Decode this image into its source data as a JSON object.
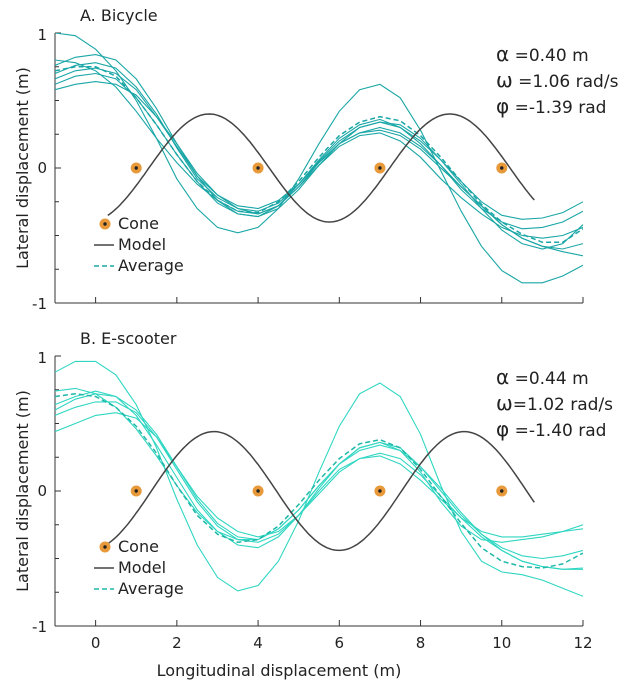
{
  "chart_data": [
    {
      "type": "line",
      "title": "A. Bicycle",
      "xlabel": "",
      "ylabel": "Lateral displacement (m)",
      "xlim": [
        -1,
        12
      ],
      "ylim": [
        -1,
        1
      ],
      "x_ticks": [],
      "y_ticks": [
        {
          "value": 1,
          "label": "1"
        },
        {
          "value": 0,
          "label": "0"
        },
        {
          "value": -1,
          "label": "-1"
        }
      ],
      "params": [
        {
          "symbol": "α",
          "text": " =0.40 m"
        },
        {
          "symbol": "ω",
          "text": " =1.06 rad/s"
        },
        {
          "symbol": "φ",
          "text": " =-1.39 rad"
        }
      ],
      "legend": {
        "placement": "bottom-left",
        "entries": [
          {
            "label": "Cone",
            "kind": "cone"
          },
          {
            "label": "Model",
            "kind": "model"
          },
          {
            "label": "Average",
            "kind": "average"
          }
        ]
      },
      "colors": {
        "trial": "#1aa6a6",
        "average": "#1aa6a6",
        "model": "#444444",
        "cone": "#e89a3a"
      },
      "cones": {
        "x": [
          1,
          4,
          7,
          10
        ],
        "y": [
          0,
          0,
          0,
          0
        ]
      },
      "model": {
        "alpha": 0.4,
        "omega": 1.06,
        "phi": -1.39,
        "x_range": [
          0.3,
          10.8
        ]
      },
      "average": {
        "x": [
          -1,
          -0.5,
          0,
          0.5,
          1,
          1.5,
          2,
          2.5,
          3,
          3.5,
          4,
          4.5,
          5,
          5.5,
          6,
          6.5,
          7,
          7.5,
          8,
          8.5,
          9,
          9.5,
          10,
          10.5,
          11,
          11.5,
          12
        ],
        "y": [
          0.72,
          0.75,
          0.75,
          0.68,
          0.52,
          0.32,
          0.1,
          -0.1,
          -0.24,
          -0.32,
          -0.33,
          -0.25,
          -0.1,
          0.08,
          0.24,
          0.34,
          0.38,
          0.35,
          0.24,
          0.08,
          -0.1,
          -0.27,
          -0.4,
          -0.49,
          -0.55,
          -0.55,
          -0.45
        ]
      },
      "trials": [
        {
          "x": [
            -1,
            -0.5,
            0,
            0.5,
            1,
            1.5,
            2,
            2.5,
            3,
            3.5,
            4,
            4.5,
            5,
            5.5,
            6,
            6.5,
            7,
            7.5,
            8,
            8.5,
            9,
            9.5,
            10,
            10.5,
            11,
            11.5,
            12
          ],
          "y": [
            1.0,
            0.98,
            0.88,
            0.72,
            0.5,
            0.22,
            -0.08,
            -0.3,
            -0.44,
            -0.48,
            -0.44,
            -0.3,
            -0.08,
            0.18,
            0.42,
            0.58,
            0.62,
            0.52,
            0.28,
            -0.02,
            -0.32,
            -0.58,
            -0.76,
            -0.85,
            -0.85,
            -0.8,
            -0.72
          ]
        },
        {
          "x": [
            -1,
            -0.5,
            0,
            0.5,
            1,
            1.5,
            2,
            2.5,
            3,
            3.5,
            4,
            4.5,
            5,
            5.5,
            6,
            6.5,
            7,
            7.5,
            8,
            8.5,
            9,
            9.5,
            10,
            10.5,
            11,
            11.5,
            12
          ],
          "y": [
            0.7,
            0.76,
            0.78,
            0.74,
            0.6,
            0.4,
            0.15,
            -0.08,
            -0.22,
            -0.3,
            -0.32,
            -0.26,
            -0.12,
            0.05,
            0.2,
            0.3,
            0.34,
            0.3,
            0.2,
            0.06,
            -0.1,
            -0.25,
            -0.35,
            -0.38,
            -0.37,
            -0.33,
            -0.25
          ]
        },
        {
          "x": [
            -1,
            -0.5,
            0,
            0.5,
            1,
            1.5,
            2,
            2.5,
            3,
            3.5,
            4,
            4.5,
            5,
            5.5,
            6,
            6.5,
            7,
            7.5,
            8,
            8.5,
            9,
            9.5,
            10,
            10.5,
            11,
            11.5,
            12
          ],
          "y": [
            0.62,
            0.68,
            0.7,
            0.66,
            0.52,
            0.32,
            0.1,
            -0.1,
            -0.26,
            -0.34,
            -0.36,
            -0.28,
            -0.12,
            0.06,
            0.22,
            0.32,
            0.36,
            0.3,
            0.18,
            0.02,
            -0.16,
            -0.3,
            -0.4,
            -0.45,
            -0.44,
            -0.4,
            -0.32
          ]
        },
        {
          "x": [
            -1,
            -0.5,
            0,
            0.5,
            1,
            1.5,
            2,
            2.5,
            3,
            3.5,
            4,
            4.5,
            5,
            5.5,
            6,
            6.5,
            7,
            7.5,
            8,
            8.5,
            9,
            9.5,
            10,
            10.5,
            11,
            11.5,
            12
          ],
          "y": [
            0.8,
            0.78,
            0.72,
            0.6,
            0.42,
            0.22,
            0.04,
            -0.12,
            -0.24,
            -0.32,
            -0.34,
            -0.28,
            -0.14,
            0.04,
            0.18,
            0.26,
            0.28,
            0.24,
            0.14,
            0.0,
            -0.14,
            -0.28,
            -0.42,
            -0.52,
            -0.58,
            -0.6,
            -0.56
          ]
        },
        {
          "x": [
            -1,
            -0.5,
            0,
            0.5,
            1,
            1.5,
            2,
            2.5,
            3,
            3.5,
            4,
            4.5,
            5,
            5.5,
            6,
            6.5,
            7,
            7.5,
            8,
            8.5,
            9,
            9.5,
            10,
            10.5,
            11,
            11.5,
            12
          ],
          "y": [
            0.66,
            0.72,
            0.74,
            0.7,
            0.58,
            0.38,
            0.16,
            -0.06,
            -0.2,
            -0.28,
            -0.3,
            -0.24,
            -0.12,
            0.04,
            0.18,
            0.26,
            0.3,
            0.26,
            0.16,
            0.02,
            -0.14,
            -0.28,
            -0.42,
            -0.52,
            -0.58,
            -0.62,
            -0.65
          ]
        },
        {
          "x": [
            -1,
            -0.5,
            0,
            0.5,
            1,
            1.5,
            2,
            2.5,
            3,
            3.5,
            4,
            4.5,
            5,
            5.5,
            6,
            6.5,
            7,
            7.5,
            8,
            8.5,
            9,
            9.5,
            10,
            10.5,
            11,
            11.5,
            12
          ],
          "y": [
            0.58,
            0.62,
            0.64,
            0.62,
            0.54,
            0.38,
            0.18,
            -0.04,
            -0.2,
            -0.3,
            -0.34,
            -0.28,
            -0.14,
            0.02,
            0.16,
            0.24,
            0.26,
            0.2,
            0.08,
            -0.08,
            -0.22,
            -0.34,
            -0.44,
            -0.5,
            -0.52,
            -0.5,
            -0.44
          ]
        },
        {
          "x": [
            -1,
            -0.5,
            0,
            0.5,
            1,
            1.5,
            2,
            2.5,
            3,
            3.5,
            4,
            4.5,
            5,
            5.5,
            6,
            6.5,
            7,
            7.5,
            8,
            8.5,
            9,
            9.5,
            10,
            10.5,
            11,
            11.5,
            12
          ],
          "y": [
            0.76,
            0.82,
            0.84,
            0.8,
            0.66,
            0.44,
            0.18,
            -0.06,
            -0.24,
            -0.34,
            -0.36,
            -0.3,
            -0.16,
            0.02,
            0.18,
            0.3,
            0.34,
            0.32,
            0.22,
            0.06,
            -0.12,
            -0.3,
            -0.46,
            -0.56,
            -0.6,
            -0.56,
            -0.42
          ]
        }
      ]
    },
    {
      "type": "line",
      "title": "B. E-scooter",
      "xlabel": "Longitudinal displacement (m)",
      "ylabel": "Lateral displacement (m)",
      "xlim": [
        -1,
        12
      ],
      "ylim": [
        -1,
        1
      ],
      "x_ticks": [
        {
          "value": 0,
          "label": "0"
        },
        {
          "value": 2,
          "label": "2"
        },
        {
          "value": 4,
          "label": "4"
        },
        {
          "value": 6,
          "label": "6"
        },
        {
          "value": 8,
          "label": "8"
        },
        {
          "value": 10,
          "label": "10"
        },
        {
          "value": 12,
          "label": "12"
        }
      ],
      "y_ticks": [
        {
          "value": 1,
          "label": "1"
        },
        {
          "value": 0,
          "label": "0"
        },
        {
          "value": -1,
          "label": "-1"
        }
      ],
      "params": [
        {
          "symbol": "α",
          "text": " =0.44 m"
        },
        {
          "symbol": "ω",
          "text": "=1.02 rad/s"
        },
        {
          "symbol": "φ",
          "text": " =-1.40 rad"
        }
      ],
      "legend": {
        "placement": "bottom-left",
        "entries": [
          {
            "label": "Cone",
            "kind": "cone"
          },
          {
            "label": "Model",
            "kind": "model"
          },
          {
            "label": "Average",
            "kind": "average"
          }
        ]
      },
      "colors": {
        "trial": "#2fd6c2",
        "average": "#1fb8a8",
        "model": "#444444",
        "cone": "#e89a3a"
      },
      "cones": {
        "x": [
          1,
          4,
          7,
          10
        ],
        "y": [
          0,
          0,
          0,
          0
        ]
      },
      "model": {
        "alpha": 0.44,
        "omega": 1.02,
        "phi": -1.4,
        "x_range": [
          0.3,
          10.8
        ]
      },
      "average": {
        "x": [
          -1,
          -0.5,
          0,
          0.5,
          1,
          1.5,
          2,
          2.5,
          3,
          3.5,
          4,
          4.5,
          5,
          5.5,
          6,
          6.5,
          7,
          7.5,
          8,
          8.5,
          9,
          9.5,
          10,
          10.5,
          11,
          11.5,
          12
        ],
        "y": [
          0.7,
          0.72,
          0.7,
          0.62,
          0.48,
          0.28,
          0.04,
          -0.18,
          -0.32,
          -0.38,
          -0.36,
          -0.26,
          -0.1,
          0.08,
          0.24,
          0.35,
          0.38,
          0.32,
          0.16,
          -0.04,
          -0.24,
          -0.42,
          -0.52,
          -0.56,
          -0.57,
          -0.54,
          -0.46
        ]
      },
      "trials": [
        {
          "x": [
            -1,
            -0.5,
            0,
            0.5,
            1,
            1.5,
            2,
            2.5,
            3,
            3.5,
            4,
            4.5,
            5,
            5.5,
            6,
            6.5,
            7,
            7.5,
            8,
            8.5,
            9,
            9.5,
            10,
            10.5,
            11,
            11.5,
            12
          ],
          "y": [
            0.88,
            0.96,
            0.96,
            0.86,
            0.64,
            0.32,
            -0.06,
            -0.4,
            -0.64,
            -0.74,
            -0.7,
            -0.52,
            -0.22,
            0.14,
            0.48,
            0.72,
            0.8,
            0.7,
            0.42,
            0.04,
            -0.3,
            -0.52,
            -0.6,
            -0.62,
            -0.66,
            -0.72,
            -0.78
          ]
        },
        {
          "x": [
            -1,
            -0.5,
            0,
            0.5,
            1,
            1.5,
            2,
            2.5,
            3,
            3.5,
            4,
            4.5,
            5,
            5.5,
            6,
            6.5,
            7,
            7.5,
            8,
            8.5,
            9,
            9.5,
            10,
            10.5,
            11,
            11.5,
            12
          ],
          "y": [
            0.6,
            0.68,
            0.72,
            0.7,
            0.6,
            0.42,
            0.18,
            -0.06,
            -0.24,
            -0.34,
            -0.36,
            -0.28,
            -0.14,
            0.04,
            0.2,
            0.32,
            0.36,
            0.32,
            0.18,
            0.0,
            -0.18,
            -0.32,
            -0.42,
            -0.48,
            -0.5,
            -0.48,
            -0.44
          ]
        },
        {
          "x": [
            -1,
            -0.5,
            0,
            0.5,
            1,
            1.5,
            2,
            2.5,
            3,
            3.5,
            4,
            4.5,
            5,
            5.5,
            6,
            6.5,
            7,
            7.5,
            8,
            8.5,
            9,
            9.5,
            10,
            10.5,
            11,
            11.5,
            12
          ],
          "y": [
            0.64,
            0.7,
            0.74,
            0.7,
            0.56,
            0.34,
            0.1,
            -0.14,
            -0.3,
            -0.4,
            -0.42,
            -0.34,
            -0.18,
            0.02,
            0.2,
            0.32,
            0.36,
            0.3,
            0.14,
            -0.08,
            -0.26,
            -0.36,
            -0.38,
            -0.36,
            -0.34,
            -0.3,
            -0.25
          ]
        },
        {
          "x": [
            -1,
            -0.5,
            0,
            0.5,
            1,
            1.5,
            2,
            2.5,
            3,
            3.5,
            4,
            4.5,
            5,
            5.5,
            6,
            6.5,
            7,
            7.5,
            8,
            8.5,
            9,
            9.5,
            10,
            10.5,
            11,
            11.5,
            12
          ],
          "y": [
            0.44,
            0.5,
            0.56,
            0.58,
            0.54,
            0.4,
            0.18,
            -0.04,
            -0.2,
            -0.3,
            -0.34,
            -0.3,
            -0.18,
            -0.02,
            0.14,
            0.24,
            0.28,
            0.24,
            0.12,
            -0.04,
            -0.2,
            -0.3,
            -0.34,
            -0.34,
            -0.32,
            -0.3,
            -0.28
          ]
        },
        {
          "x": [
            -1,
            -0.5,
            0,
            0.5,
            1,
            1.5,
            2,
            2.5,
            3,
            3.5,
            4,
            4.5,
            5,
            5.5,
            6,
            6.5,
            7,
            7.5,
            8,
            8.5,
            9,
            9.5,
            10,
            10.5,
            11,
            11.5,
            12
          ],
          "y": [
            0.74,
            0.76,
            0.72,
            0.62,
            0.46,
            0.26,
            0.04,
            -0.16,
            -0.3,
            -0.36,
            -0.36,
            -0.28,
            -0.14,
            0.04,
            0.2,
            0.3,
            0.34,
            0.3,
            0.18,
            0.02,
            -0.16,
            -0.32,
            -0.44,
            -0.52,
            -0.56,
            -0.58,
            -0.57
          ]
        },
        {
          "x": [
            -1,
            -0.5,
            0,
            0.5,
            1,
            1.5,
            2,
            2.5,
            3,
            3.5,
            4,
            4.5,
            5,
            5.5,
            6,
            6.5,
            7,
            7.5,
            8,
            8.5,
            9,
            9.5,
            10,
            10.5,
            11,
            11.5,
            12
          ],
          "y": [
            0.56,
            0.62,
            0.66,
            0.66,
            0.58,
            0.4,
            0.16,
            -0.08,
            -0.26,
            -0.36,
            -0.38,
            -0.32,
            -0.18,
            0.0,
            0.16,
            0.24,
            0.26,
            0.2,
            0.08,
            -0.06,
            -0.2,
            -0.34,
            -0.44,
            -0.52,
            -0.56,
            -0.58,
            -0.58
          ]
        }
      ]
    }
  ]
}
